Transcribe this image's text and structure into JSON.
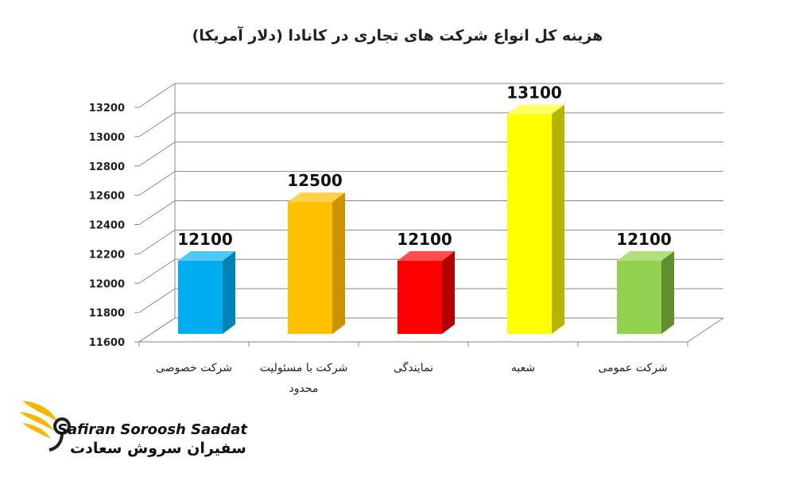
{
  "chart_data": {
    "type": "bar",
    "title": "هزینه کل انواع شرکت های تجاری در کانادا (دلار آمریکا)",
    "categories": [
      "شرکت خصوصی",
      "شرکت با مسئولیت محدود",
      "نمایندگی",
      "شعبه",
      "شرکت عمومی"
    ],
    "category_lines": [
      [
        "شرکت خصوصی"
      ],
      [
        "شرکت با مسئولیت",
        "محدود"
      ],
      [
        "نمایندگی"
      ],
      [
        "شعبه"
      ],
      [
        "شرکت عمومی"
      ]
    ],
    "values": [
      12100,
      12500,
      12100,
      13100,
      12100
    ],
    "data_labels": [
      "12100",
      "12500",
      "12100",
      "13100",
      "12100"
    ],
    "yticks": [
      "11600",
      "11800",
      "12000",
      "12200",
      "12400",
      "12600",
      "12800",
      "13000",
      "13200"
    ],
    "ylim": [
      11600,
      13200
    ],
    "grid": true,
    "legend": "none",
    "colors": [
      {
        "face": "#00aeef",
        "side": "#0084b8",
        "top": "#4fc8f5"
      },
      {
        "face": "#ffc000",
        "side": "#c99400",
        "top": "#ffd24d"
      },
      {
        "face": "#ff0000",
        "side": "#b30000",
        "top": "#ff4d4d"
      },
      {
        "face": "#ffff00",
        "side": "#b5b500",
        "top": "#ffff66"
      },
      {
        "face": "#92d050",
        "side": "#5f8f2f",
        "top": "#b2e07e"
      }
    ]
  },
  "brand": {
    "name_en": "Safiran Soroosh Saadat",
    "name_fa": "سفیران سروش سعادت",
    "color": "#f5b700"
  }
}
